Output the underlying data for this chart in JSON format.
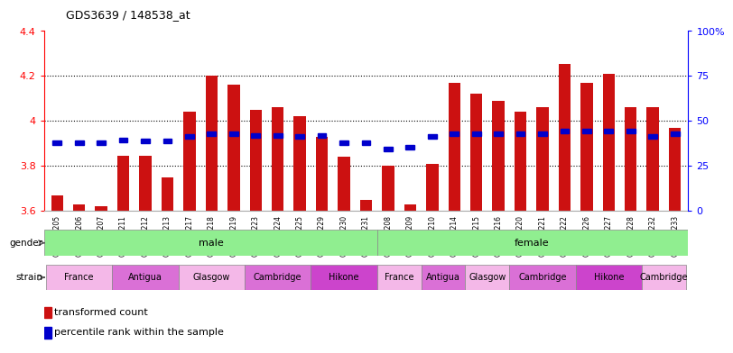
{
  "title": "GDS3639 / 148538_at",
  "samples": [
    "GSM231205",
    "GSM231206",
    "GSM231207",
    "GSM231211",
    "GSM231212",
    "GSM231213",
    "GSM231217",
    "GSM231218",
    "GSM231219",
    "GSM231223",
    "GSM231224",
    "GSM231225",
    "GSM231229",
    "GSM231230",
    "GSM231231",
    "GSM231208",
    "GSM231209",
    "GSM231210",
    "GSM231214",
    "GSM231215",
    "GSM231216",
    "GSM231220",
    "GSM231221",
    "GSM231222",
    "GSM231226",
    "GSM231227",
    "GSM231228",
    "GSM231232",
    "GSM231233"
  ],
  "bar_values": [
    3.67,
    3.63,
    3.62,
    3.845,
    3.845,
    3.75,
    4.04,
    4.2,
    4.16,
    4.05,
    4.06,
    4.02,
    3.93,
    3.84,
    3.65,
    3.8,
    3.63,
    3.81,
    4.17,
    4.12,
    4.09,
    4.04,
    4.06,
    4.255,
    4.17,
    4.21,
    4.06,
    4.06,
    3.97
  ],
  "blue_values": [
    3.905,
    3.905,
    3.905,
    3.915,
    3.91,
    3.91,
    3.93,
    3.945,
    3.945,
    3.935,
    3.935,
    3.93,
    3.935,
    3.905,
    3.905,
    3.875,
    3.885,
    3.93,
    3.945,
    3.945,
    3.945,
    3.945,
    3.945,
    3.955,
    3.955,
    3.955,
    3.955,
    3.93,
    3.945
  ],
  "ymin": 3.6,
  "ymax": 4.4,
  "bar_color": "#cc1111",
  "blue_color": "#0000cc",
  "gender_groups": [
    {
      "label": "male",
      "start": 0,
      "end": 15
    },
    {
      "label": "female",
      "start": 15,
      "end": 29
    }
  ],
  "gender_color": "#90EE90",
  "strain_groups": [
    {
      "label": "France",
      "start": 0,
      "end": 3,
      "color": "#f4b8e8"
    },
    {
      "label": "Antigua",
      "start": 3,
      "end": 6,
      "color": "#da70d6"
    },
    {
      "label": "Glasgow",
      "start": 6,
      "end": 9,
      "color": "#f4b8e8"
    },
    {
      "label": "Cambridge",
      "start": 9,
      "end": 12,
      "color": "#da70d6"
    },
    {
      "label": "Hikone",
      "start": 12,
      "end": 15,
      "color": "#cc44cc"
    },
    {
      "label": "France",
      "start": 15,
      "end": 17,
      "color": "#f4b8e8"
    },
    {
      "label": "Antigua",
      "start": 17,
      "end": 19,
      "color": "#da70d6"
    },
    {
      "label": "Glasgow",
      "start": 19,
      "end": 21,
      "color": "#f4b8e8"
    },
    {
      "label": "Cambridge",
      "start": 21,
      "end": 24,
      "color": "#da70d6"
    },
    {
      "label": "Hikone",
      "start": 24,
      "end": 27,
      "color": "#cc44cc"
    },
    {
      "label": "Cambridge",
      "start": 27,
      "end": 29,
      "color": "#f4b8e8"
    }
  ],
  "right_ytick_percents": [
    0,
    25,
    50,
    75,
    100
  ],
  "dotted_lines": [
    3.8,
    4.0,
    4.2
  ],
  "legend_items": [
    {
      "color": "#cc1111",
      "label": "transformed count"
    },
    {
      "color": "#0000cc",
      "label": "percentile rank within the sample"
    }
  ]
}
